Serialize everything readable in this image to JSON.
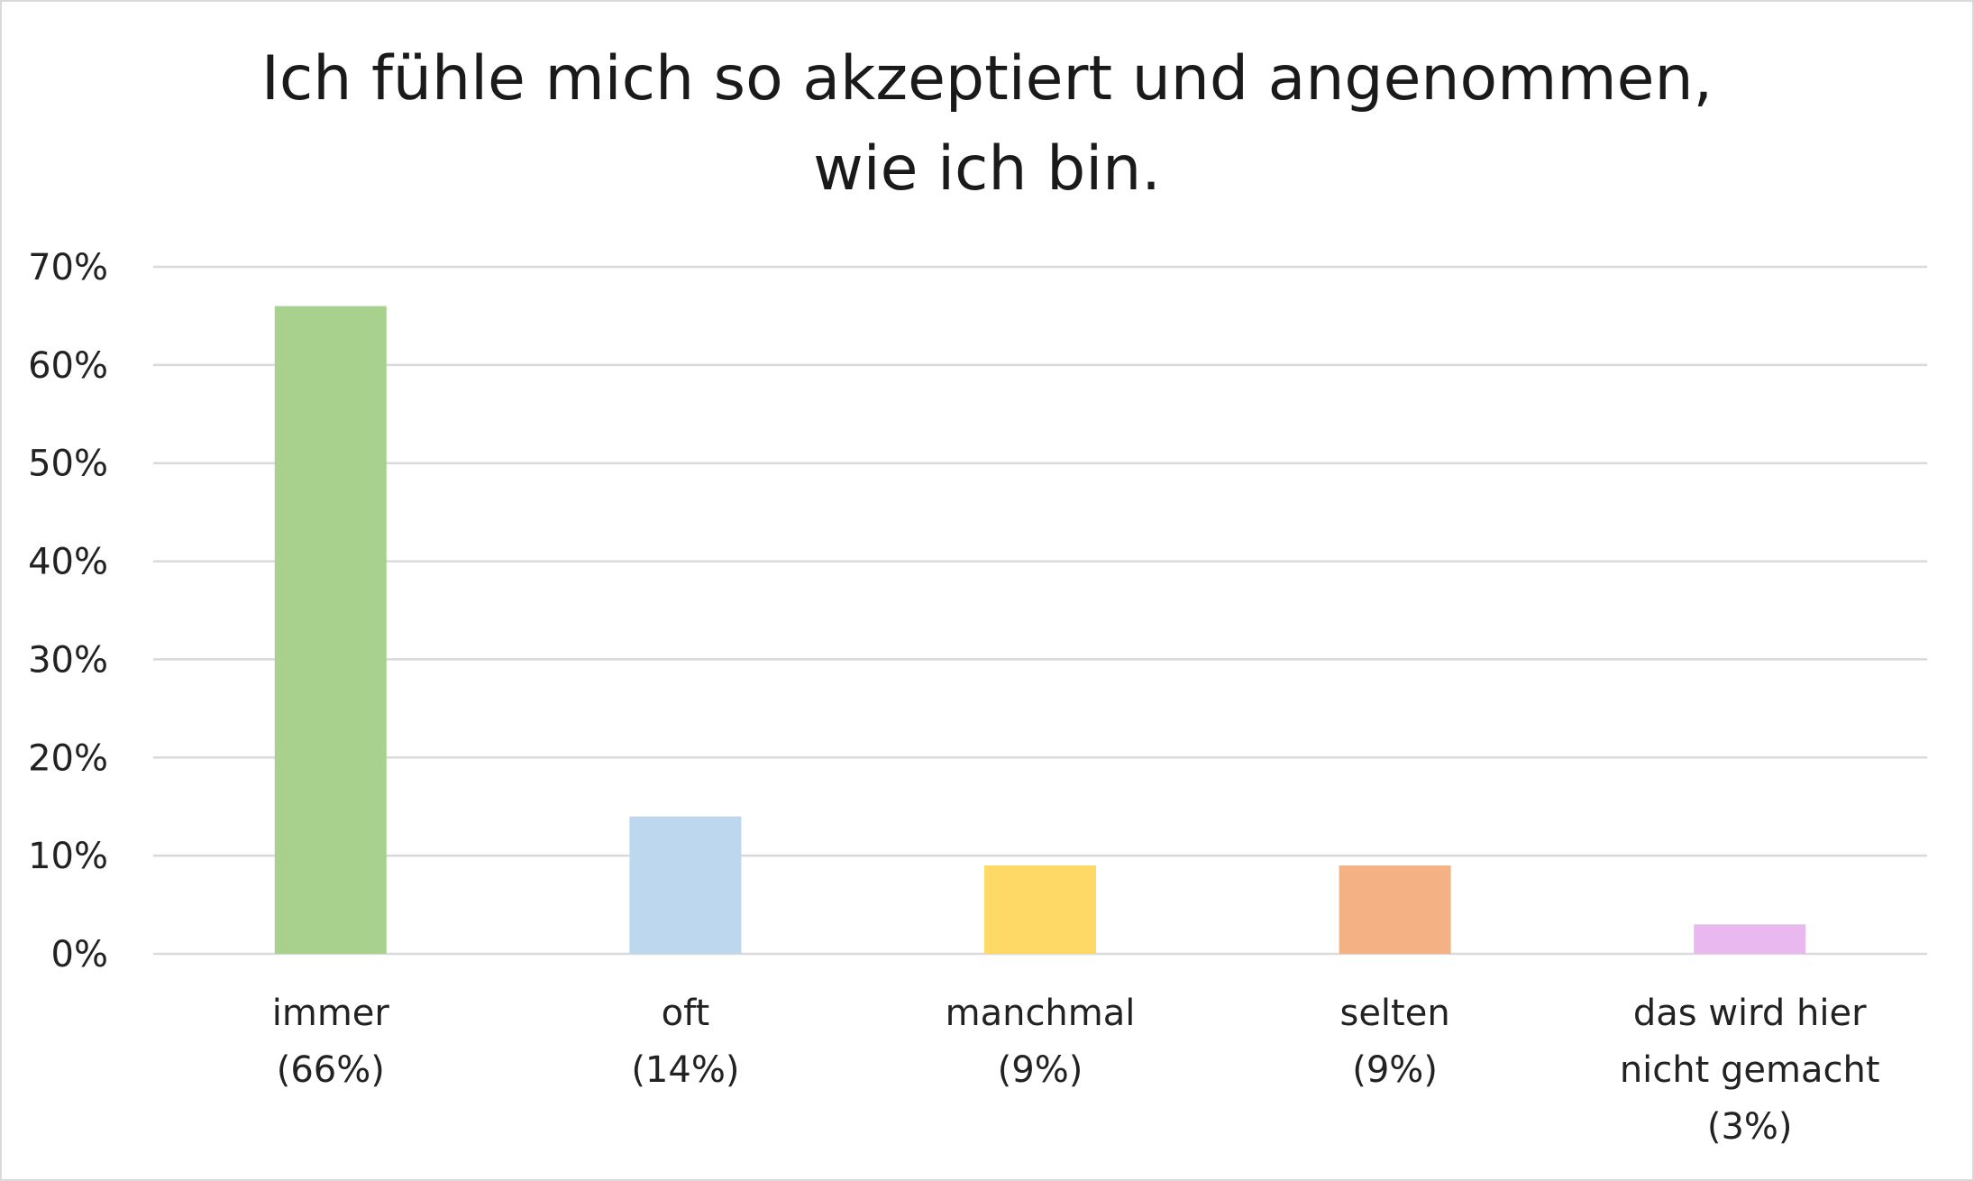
{
  "chart_data": {
    "type": "bar",
    "title_lines": [
      "Ich fühle mich so akzeptiert und angenommen,",
      "wie ich bin."
    ],
    "categories": [
      [
        "immer",
        "(66%)"
      ],
      [
        "oft",
        "(14%)"
      ],
      [
        "manchmal",
        "(9%)"
      ],
      [
        "selten",
        "(9%)"
      ],
      [
        "das wird hier",
        "nicht gemacht",
        "(3%)"
      ]
    ],
    "values": [
      66,
      14,
      9,
      9,
      3
    ],
    "colors": [
      "#a9d18e",
      "#bdd7ee",
      "#ffd966",
      "#f4b183",
      "#e9b8ee"
    ],
    "ylim": [
      0,
      70
    ],
    "yticks": [
      0,
      10,
      20,
      30,
      40,
      50,
      60,
      70
    ],
    "ytick_labels": [
      "0%",
      "10%",
      "20%",
      "30%",
      "40%",
      "50%",
      "60%",
      "70%"
    ],
    "grid": true,
    "gridline_color": "#d9d9d9"
  }
}
